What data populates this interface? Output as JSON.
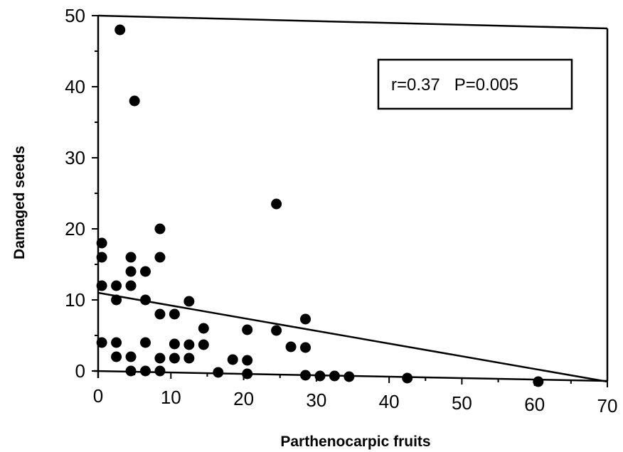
{
  "chart_data": {
    "type": "scatter",
    "xlabel": "Parthenocarpic fruits",
    "ylabel": "Damaged seeds",
    "xlim": [
      0,
      70
    ],
    "ylim": [
      0,
      50
    ],
    "x_ticks": [
      "0",
      "10",
      "20",
      "30",
      "40",
      "50",
      "60",
      "70"
    ],
    "y_ticks": [
      "0",
      "10",
      "20",
      "30",
      "40",
      "50"
    ],
    "annotation": "r=0.37   P=0.005",
    "grid": false,
    "points": [
      {
        "x": 3,
        "y": 48
      },
      {
        "x": 5,
        "y": 38
      },
      {
        "x": 24.5,
        "y": 23.5
      },
      {
        "x": 8.5,
        "y": 20
      },
      {
        "x": 0.5,
        "y": 18
      },
      {
        "x": 0.5,
        "y": 16
      },
      {
        "x": 4.5,
        "y": 16
      },
      {
        "x": 8.5,
        "y": 16
      },
      {
        "x": 4.5,
        "y": 14
      },
      {
        "x": 6.5,
        "y": 14
      },
      {
        "x": 0.5,
        "y": 12
      },
      {
        "x": 2.5,
        "y": 12
      },
      {
        "x": 4.5,
        "y": 12
      },
      {
        "x": 2.5,
        "y": 10
      },
      {
        "x": 6.5,
        "y": 10
      },
      {
        "x": 12.5,
        "y": 9.8
      },
      {
        "x": 8.5,
        "y": 8
      },
      {
        "x": 10.5,
        "y": 8
      },
      {
        "x": 28.5,
        "y": 7.3
      },
      {
        "x": 14.5,
        "y": 6
      },
      {
        "x": 20.5,
        "y": 5.8
      },
      {
        "x": 24.5,
        "y": 5.7
      },
      {
        "x": 0.5,
        "y": 4
      },
      {
        "x": 2.5,
        "y": 4
      },
      {
        "x": 6.5,
        "y": 4
      },
      {
        "x": 10.5,
        "y": 3.8
      },
      {
        "x": 12.5,
        "y": 3.7
      },
      {
        "x": 14.5,
        "y": 3.7
      },
      {
        "x": 26.5,
        "y": 3.4
      },
      {
        "x": 28.5,
        "y": 3.3
      },
      {
        "x": 2.5,
        "y": 2
      },
      {
        "x": 4.5,
        "y": 2
      },
      {
        "x": 8.5,
        "y": 1.8
      },
      {
        "x": 10.5,
        "y": 1.8
      },
      {
        "x": 12.5,
        "y": 1.8
      },
      {
        "x": 18.5,
        "y": 1.6
      },
      {
        "x": 20.5,
        "y": 1.5
      },
      {
        "x": 4.5,
        "y": 0
      },
      {
        "x": 6.5,
        "y": 0
      },
      {
        "x": 8.5,
        "y": 0
      },
      {
        "x": 16.5,
        "y": -0.2
      },
      {
        "x": 20.5,
        "y": -0.4
      },
      {
        "x": 28.5,
        "y": -0.6
      },
      {
        "x": 30.5,
        "y": -0.7
      },
      {
        "x": 32.5,
        "y": -0.7
      },
      {
        "x": 34.5,
        "y": -0.8
      },
      {
        "x": 42.5,
        "y": -1
      },
      {
        "x": 60.5,
        "y": -1.5
      }
    ],
    "regression_line": {
      "x": [
        0,
        70
      ],
      "y": [
        11,
        -1.5
      ]
    }
  }
}
